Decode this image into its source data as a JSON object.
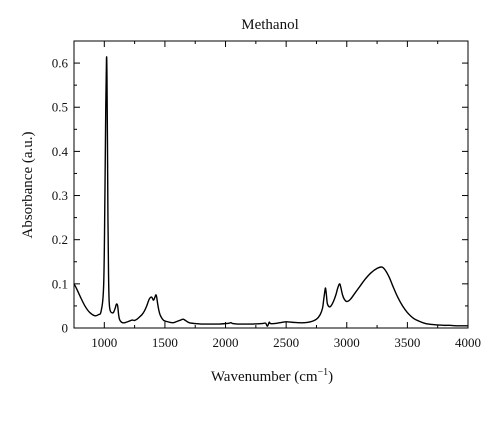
{
  "chart_data": {
    "type": "line",
    "title": "Methanol",
    "xlabel": "Wavenumber",
    "xlabel_unit_base": "cm",
    "xlabel_unit_exp": "−1",
    "ylabel": "Absorbance (a.u.)",
    "xlim": [
      750,
      4000
    ],
    "ylim": [
      0,
      0.65
    ],
    "x_ticks": [
      1000,
      1500,
      2000,
      2500,
      3000,
      3500,
      4000
    ],
    "x_tick_labels": [
      "1000",
      "1500",
      "2000",
      "2500",
      "3000",
      "3500",
      "4000"
    ],
    "y_ticks": [
      0,
      0.1,
      0.2,
      0.3,
      0.4,
      0.5,
      0.6
    ],
    "y_tick_labels": [
      "0",
      "0.1",
      "0.2",
      "0.3",
      "0.4",
      "0.5",
      "0.6"
    ],
    "grid": false,
    "legend": "none",
    "line_color": "#000000",
    "series": [
      {
        "x": [
          750,
          770,
          800,
          840,
          880,
          920,
          950,
          975,
          995,
          1005,
          1012,
          1018,
          1022,
          1026,
          1030,
          1035,
          1040,
          1048,
          1060,
          1075,
          1090,
          1100,
          1110,
          1118,
          1125,
          1135,
          1150,
          1170,
          1200,
          1230,
          1250,
          1270,
          1290,
          1310,
          1330,
          1350,
          1370,
          1390,
          1405,
          1415,
          1425,
          1432,
          1440,
          1450,
          1460,
          1475,
          1490,
          1510,
          1540,
          1570,
          1600,
          1630,
          1650,
          1670,
          1700,
          1750,
          1800,
          1850,
          1900,
          1950,
          2000,
          2030,
          2045,
          2060,
          2100,
          2200,
          2300,
          2330,
          2345,
          2360,
          2370,
          2400,
          2450,
          2500,
          2550,
          2600,
          2650,
          2700,
          2750,
          2780,
          2800,
          2810,
          2820,
          2825,
          2832,
          2840,
          2855,
          2870,
          2890,
          2910,
          2925,
          2940,
          2950,
          2965,
          2980,
          3000,
          3030,
          3070,
          3110,
          3150,
          3200,
          3250,
          3290,
          3320,
          3350,
          3380,
          3420,
          3460,
          3500,
          3550,
          3600,
          3650,
          3700,
          3750,
          3800,
          3850,
          3900,
          3950,
          4000
        ],
        "y": [
          0.1,
          0.09,
          0.072,
          0.05,
          0.035,
          0.028,
          0.03,
          0.04,
          0.1,
          0.3,
          0.5,
          0.61,
          0.57,
          0.42,
          0.25,
          0.12,
          0.06,
          0.04,
          0.035,
          0.035,
          0.045,
          0.054,
          0.05,
          0.03,
          0.02,
          0.015,
          0.012,
          0.012,
          0.015,
          0.018,
          0.017,
          0.02,
          0.025,
          0.03,
          0.038,
          0.05,
          0.065,
          0.07,
          0.063,
          0.068,
          0.075,
          0.07,
          0.055,
          0.04,
          0.03,
          0.022,
          0.017,
          0.015,
          0.013,
          0.012,
          0.015,
          0.018,
          0.02,
          0.017,
          0.012,
          0.01,
          0.009,
          0.009,
          0.009,
          0.009,
          0.01,
          0.011,
          0.012,
          0.01,
          0.009,
          0.009,
          0.01,
          0.011,
          0.004,
          0.013,
          0.01,
          0.01,
          0.012,
          0.014,
          0.013,
          0.012,
          0.012,
          0.014,
          0.02,
          0.03,
          0.045,
          0.065,
          0.085,
          0.09,
          0.075,
          0.055,
          0.048,
          0.05,
          0.06,
          0.075,
          0.09,
          0.1,
          0.093,
          0.075,
          0.065,
          0.06,
          0.065,
          0.08,
          0.095,
          0.11,
          0.125,
          0.135,
          0.138,
          0.13,
          0.115,
          0.095,
          0.07,
          0.05,
          0.035,
          0.022,
          0.015,
          0.01,
          0.008,
          0.007,
          0.006,
          0.006,
          0.005,
          0.005,
          0.005
        ]
      }
    ]
  }
}
